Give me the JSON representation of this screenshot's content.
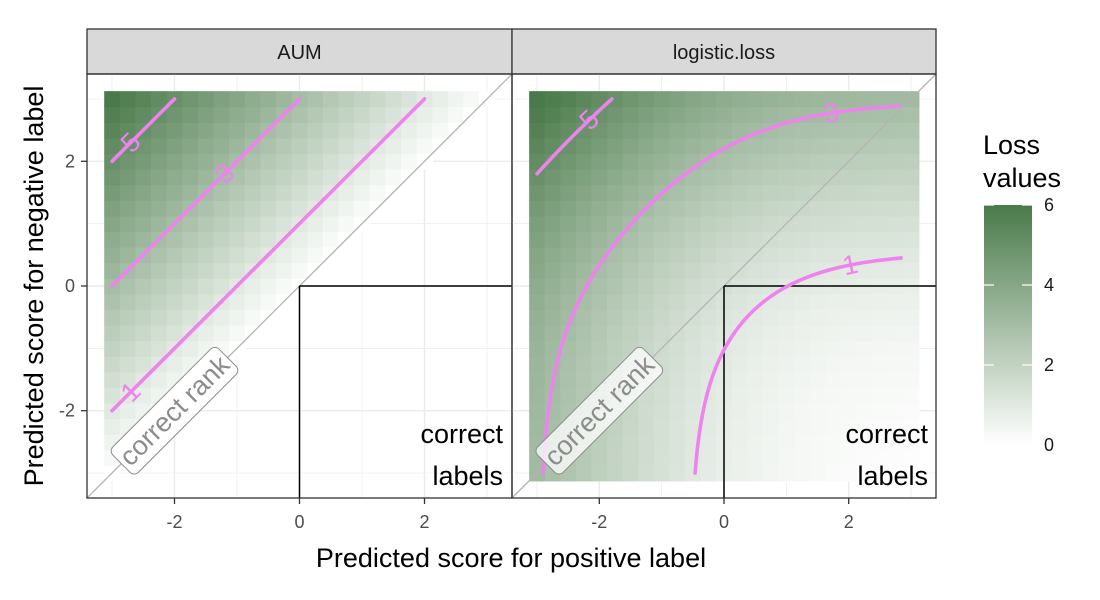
{
  "chart_data": {
    "type": "heatmap",
    "facets": [
      {
        "strip": "AUM",
        "loss": "aum",
        "contours": [
          1,
          3,
          5
        ]
      },
      {
        "strip": "logistic.loss",
        "loss": "logistic",
        "contours": [
          1,
          3,
          5
        ]
      }
    ],
    "xlabel": "Predicted score for positive label",
    "ylabel": "Predicted score for negative label",
    "xlim": [
      -3.4,
      3.4
    ],
    "ylim": [
      -3.4,
      3.4
    ],
    "x_ticks": [
      -2,
      0,
      2
    ],
    "y_ticks": [
      -2,
      0,
      2
    ],
    "x_tick_labels": [
      "-2",
      "0",
      "2"
    ],
    "y_tick_labels": [
      "-2",
      "0",
      "2"
    ],
    "grid_range": [
      -3,
      3
    ],
    "grid_step": 0.25,
    "diagonal": "y = x",
    "diagonal_label": "correct rank",
    "correct_labels_region": {
      "x_min": 0,
      "y_max": 0,
      "label_line1": "correct",
      "label_line2": "labels"
    },
    "legend": {
      "title_line1": "Loss",
      "title_line2": "values",
      "range": [
        0,
        6
      ],
      "ticks": [
        0,
        2,
        4,
        6
      ],
      "tick_labels": [
        "0",
        "2",
        "4",
        "6"
      ],
      "placement": "right"
    },
    "grid": true
  },
  "colors": {
    "low": "#ffffff",
    "high": "#4a7a4a",
    "contour": "#ee82ee",
    "strip_bg": "#d9d9d9",
    "panel_border": "#333333",
    "gridline": "#ebebeb",
    "diagonal": "#b3b3b3"
  }
}
